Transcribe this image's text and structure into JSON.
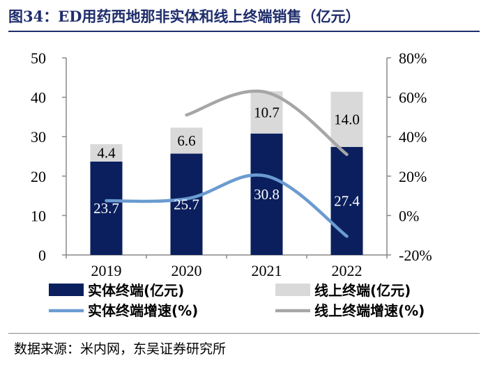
{
  "title": "图34：ED用药西地那非实体和线上终端销售（亿元）",
  "source": "数据来源：米内网，东吴证券研究所",
  "colors": {
    "offline_bar": "#0b1f5e",
    "online_bar": "#d9d9d9",
    "offline_line": "#6a9bd1",
    "online_line": "#a6a6a6",
    "title": "#1f2d6b"
  },
  "chart_data": {
    "type": "bar",
    "stacked": true,
    "categories": [
      "2019",
      "2020",
      "2021",
      "2022"
    ],
    "series": [
      {
        "name": "实体终端(亿元)",
        "axis": "left",
        "values": [
          23.7,
          25.7,
          30.8,
          27.4
        ],
        "labels": [
          "23.7",
          "25.7",
          "30.8",
          "27.4"
        ]
      },
      {
        "name": "线上终端(亿元)",
        "axis": "left",
        "values": [
          4.4,
          6.6,
          10.7,
          14.0
        ],
        "labels": [
          "4.4",
          "6.6",
          "10.7",
          "14.0"
        ]
      }
    ],
    "line_series": [
      {
        "name": "实体终端增速(%)",
        "axis": "right",
        "values": [
          7.5,
          8.5,
          20.0,
          -10.5
        ]
      },
      {
        "name": "线上终端增速(%)",
        "axis": "right",
        "values": [
          null,
          51.0,
          62.5,
          31.0
        ]
      }
    ],
    "left_axis": {
      "min": 0,
      "max": 50,
      "ticks": [
        "0",
        "10",
        "20",
        "30",
        "40",
        "50"
      ],
      "tick_values": [
        0,
        10,
        20,
        30,
        40,
        50
      ]
    },
    "right_axis": {
      "min": -20,
      "max": 80,
      "ticks": [
        "-20%",
        "0%",
        "20%",
        "40%",
        "60%",
        "80%"
      ],
      "tick_values": [
        -20,
        0,
        20,
        40,
        60,
        80
      ]
    },
    "legend": [
      {
        "label": "实体终端(亿元)",
        "kind": "bar",
        "series": 0
      },
      {
        "label": "线上终端(亿元)",
        "kind": "bar",
        "series": 1
      },
      {
        "label": "实体终端增速(%)",
        "kind": "line",
        "series": 0
      },
      {
        "label": "线上终端增速(%)",
        "kind": "line",
        "series": 1
      }
    ],
    "legend_position": "bottom"
  }
}
